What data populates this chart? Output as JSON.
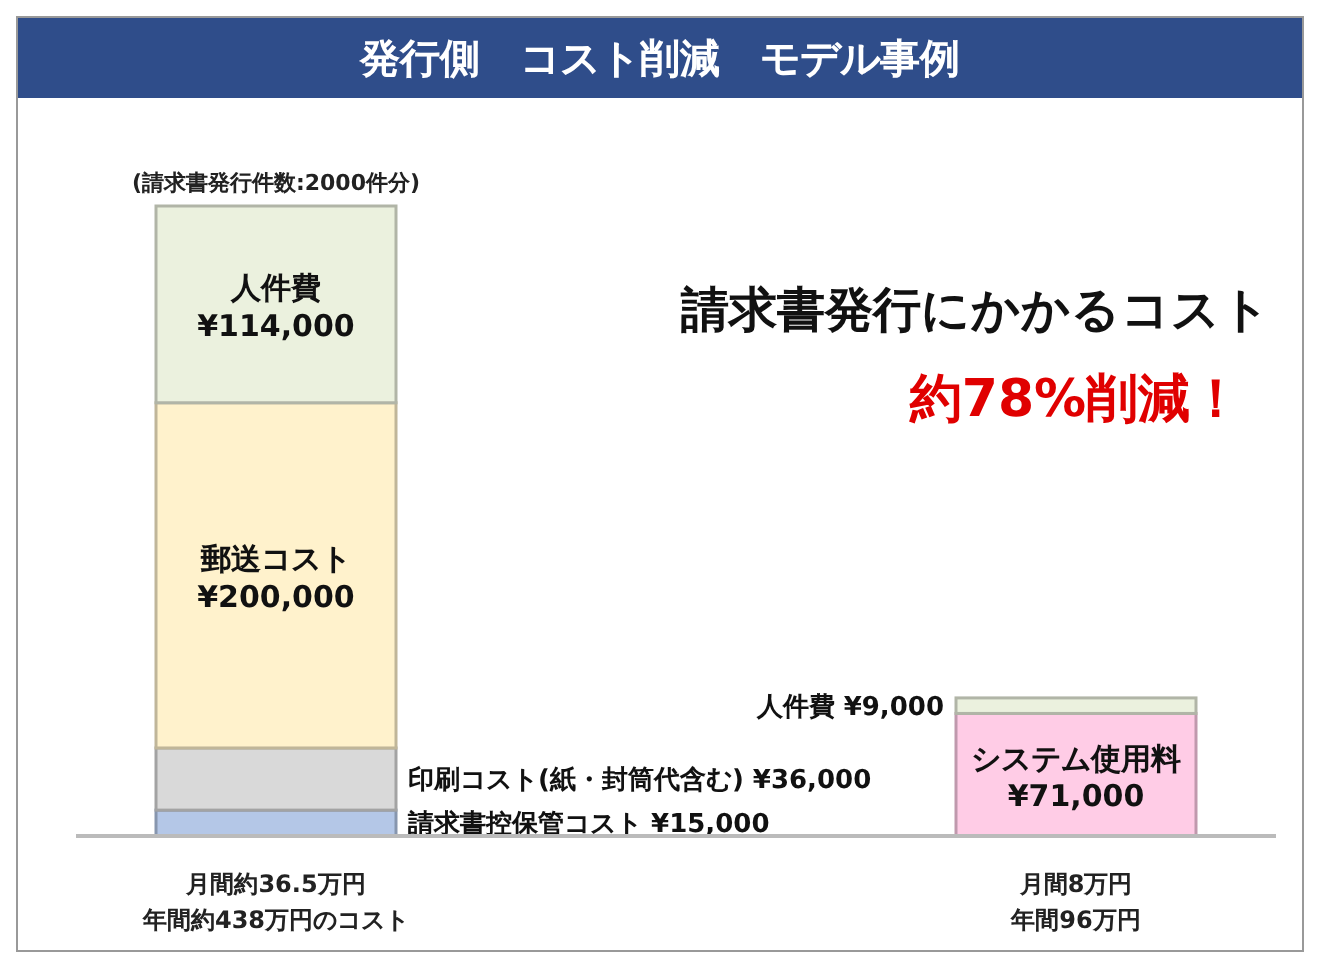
{
  "chart_data": {
    "type": "bar",
    "title": "発行側　コスト削減　モデル事例",
    "stacked": true,
    "tick_labels": "x",
    "categories": [
      "月間約36.5万円",
      "月間8万円"
    ],
    "series": [
      {
        "name": "請求書控保管コスト",
        "color": "#b4c7e7",
        "values": [
          15000,
          null
        ],
        "value_labels": [
          "¥15,000",
          null
        ]
      },
      {
        "name": "印刷コスト(紙・封筒代含む)",
        "color": "#d9d9d9",
        "values": [
          36000,
          null
        ],
        "value_labels": [
          "¥36,000",
          null
        ]
      },
      {
        "name": "郵送コスト",
        "color": "#fff2cc",
        "values": [
          200000,
          null
        ],
        "value_labels": [
          "¥200,000",
          null
        ]
      },
      {
        "name": "システム使用料",
        "color": "#ffcce6",
        "values": [
          null,
          71000
        ],
        "value_labels": [
          null,
          "¥71,000"
        ]
      },
      {
        "name": "人件費",
        "color": "#ebf1de",
        "values": [
          114000,
          9000
        ],
        "value_labels": [
          "¥114,000",
          "¥9,000"
        ]
      }
    ],
    "annotations": [
      "(請求書発行件数:2000件分)",
      "請求書発行にかかるコスト",
      "約78%削減！",
      "年間約438万円のコスト",
      "年間96万円"
    ]
  }
}
